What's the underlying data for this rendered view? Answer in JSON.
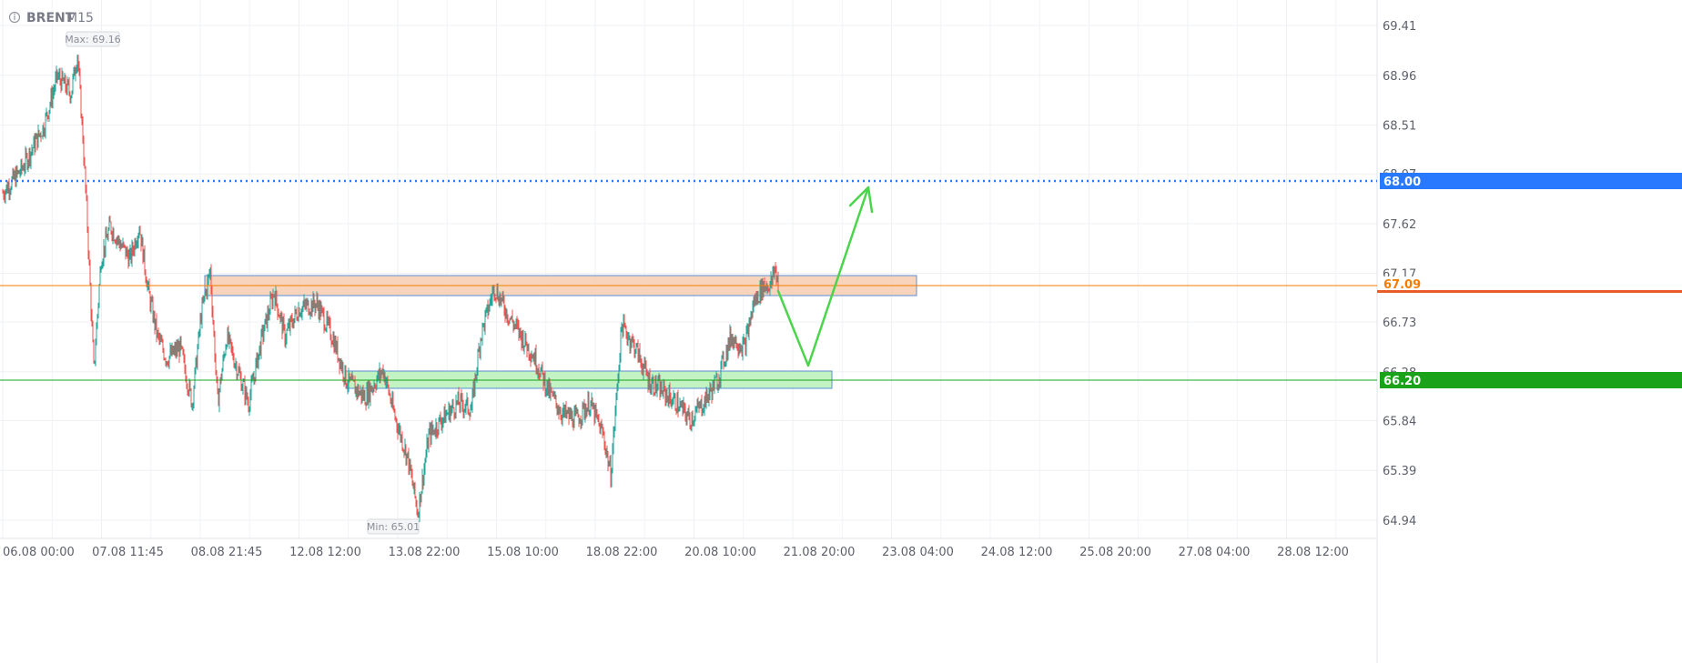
{
  "header": {
    "info_icon": "info-icon",
    "symbol": "BRENT",
    "timeframe": "M15"
  },
  "chart_data": {
    "type": "candlestick",
    "y_ticks": [
      "69.41",
      "68.96",
      "68.51",
      "68.07",
      "67.62",
      "67.17",
      "66.73",
      "66.28",
      "65.84",
      "65.39",
      "64.94"
    ],
    "x_ticks": [
      "06.08 00:00",
      "07.08 11:45",
      "08.08 21:45",
      "12.08 12:00",
      "13.08 22:00",
      "15.08 10:00",
      "18.08 22:00",
      "20.08 10:00",
      "21.08 20:00",
      "23.08 04:00",
      "24.08 12:00",
      "25.08 20:00",
      "27.08 04:00",
      "28.08 12:00"
    ],
    "ylim": [
      64.74,
      69.58
    ],
    "max_label": "Max: 69.16",
    "min_label": "Min: 65.01",
    "price_badges": [
      {
        "name": "resistance-level",
        "value": "68.00",
        "color": "#2979ff",
        "style": "dotted"
      },
      {
        "name": "current-price",
        "value": "67.09",
        "color": "#f57c00"
      },
      {
        "name": "support-level",
        "value": "66.20",
        "color": "#1aa31a"
      }
    ],
    "zones": [
      {
        "name": "resistance-zone",
        "fill": "#f7ccb0",
        "border": "#5a8fd6"
      },
      {
        "name": "support-zone",
        "fill": "#b9f0b9",
        "border": "#5a8fd6"
      }
    ],
    "forecast_arrow_color": "#4cd44c",
    "up_color": "#26a69a",
    "down_color": "#ef5350",
    "price_path": [
      [
        0,
        67.9
      ],
      [
        20,
        68.1
      ],
      [
        45,
        68.5
      ],
      [
        60,
        68.95
      ],
      [
        75,
        68.8
      ],
      [
        82,
        69.16
      ],
      [
        88,
        68.4
      ],
      [
        93,
        67.6
      ],
      [
        100,
        66.3
      ],
      [
        108,
        67.3
      ],
      [
        118,
        67.6
      ],
      [
        128,
        67.45
      ],
      [
        140,
        67.3
      ],
      [
        150,
        67.6
      ],
      [
        160,
        67.0
      ],
      [
        170,
        66.6
      ],
      [
        180,
        66.4
      ],
      [
        195,
        66.5
      ],
      [
        208,
        66.0
      ],
      [
        218,
        66.8
      ],
      [
        228,
        67.2
      ],
      [
        236,
        66.0
      ],
      [
        246,
        66.6
      ],
      [
        258,
        66.3
      ],
      [
        270,
        66.0
      ],
      [
        285,
        66.6
      ],
      [
        298,
        67.0
      ],
      [
        310,
        66.6
      ],
      [
        325,
        66.85
      ],
      [
        345,
        66.9
      ],
      [
        362,
        66.6
      ],
      [
        378,
        66.2
      ],
      [
        398,
        66.05
      ],
      [
        418,
        66.3
      ],
      [
        430,
        65.9
      ],
      [
        445,
        65.5
      ],
      [
        456,
        65.01
      ],
      [
        468,
        65.7
      ],
      [
        482,
        65.85
      ],
      [
        500,
        66.0
      ],
      [
        515,
        65.95
      ],
      [
        525,
        66.6
      ],
      [
        540,
        67.05
      ],
      [
        555,
        66.8
      ],
      [
        570,
        66.6
      ],
      [
        585,
        66.4
      ],
      [
        600,
        66.1
      ],
      [
        615,
        65.9
      ],
      [
        630,
        65.85
      ],
      [
        645,
        66.0
      ],
      [
        660,
        65.7
      ],
      [
        668,
        65.35
      ],
      [
        680,
        66.7
      ],
      [
        695,
        66.5
      ],
      [
        710,
        66.2
      ],
      [
        725,
        66.1
      ],
      [
        740,
        66.0
      ],
      [
        755,
        65.85
      ],
      [
        770,
        66.0
      ],
      [
        785,
        66.2
      ],
      [
        800,
        66.6
      ],
      [
        815,
        66.5
      ],
      [
        825,
        66.9
      ],
      [
        835,
        67.05
      ],
      [
        845,
        67.08
      ],
      [
        848,
        67.22
      ],
      [
        852,
        67.09
      ]
    ]
  }
}
